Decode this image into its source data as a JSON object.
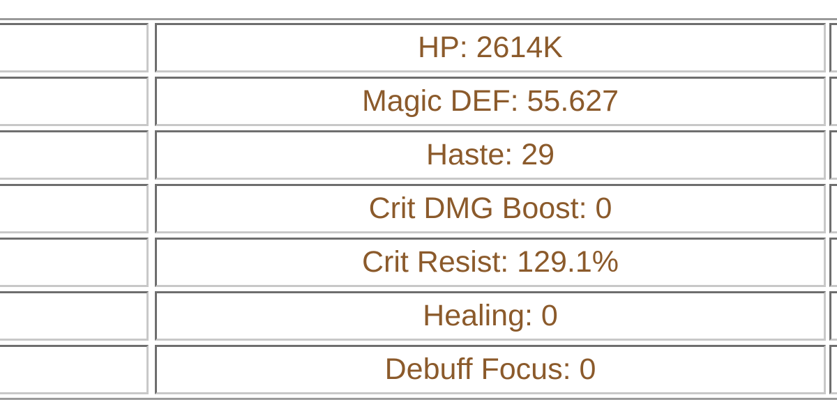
{
  "table": {
    "rows": [
      {
        "stat": "HP: 2614K"
      },
      {
        "stat": "Magic DEF: 55.627"
      },
      {
        "stat": "Haste: 29"
      },
      {
        "stat": "Crit DMG Boost: 0"
      },
      {
        "stat": "Crit Resist: 129.1%"
      },
      {
        "stat": "Healing: 0"
      },
      {
        "stat": "Debuff Focus: 0"
      }
    ],
    "text_color": "#8b5a2b"
  }
}
